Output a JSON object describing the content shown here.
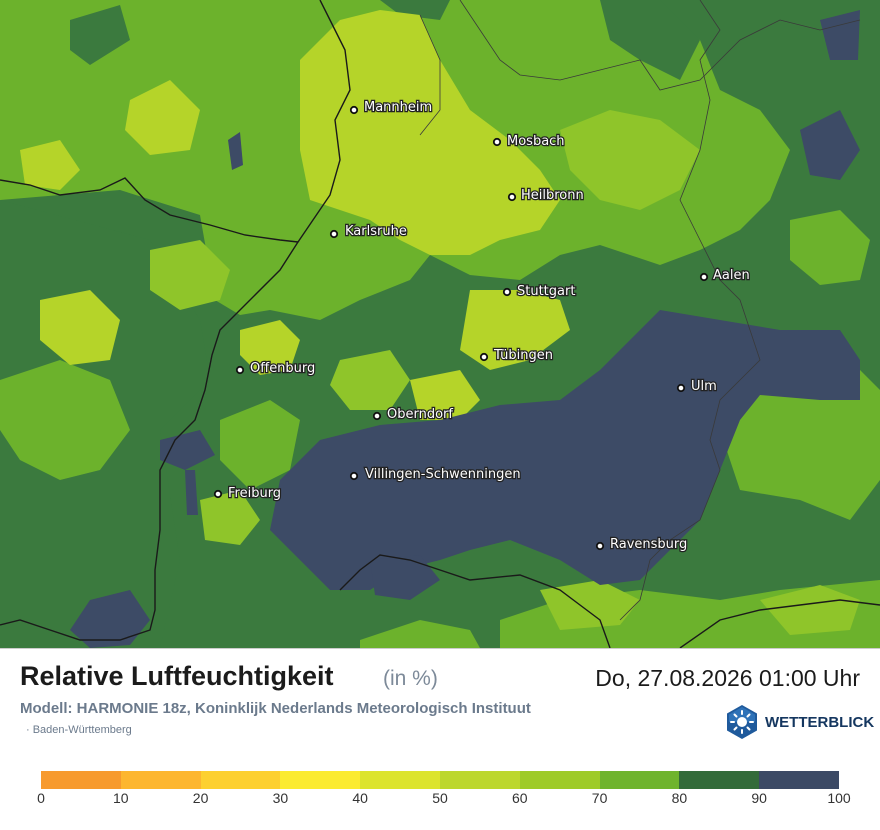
{
  "map": {
    "region": "Baden-Württemberg",
    "cities": [
      {
        "name": "Mannheim"
      },
      {
        "name": "Mosbach"
      },
      {
        "name": "Heilbronn"
      },
      {
        "name": "Karlsruhe"
      },
      {
        "name": "Aalen"
      },
      {
        "name": "Stuttgart"
      },
      {
        "name": "Tübingen"
      },
      {
        "name": "Offenburg"
      },
      {
        "name": "Ulm"
      },
      {
        "name": "Oberndorf"
      },
      {
        "name": "Villingen-Schwenningen"
      },
      {
        "name": "Freiburg"
      },
      {
        "name": "Ravensburg"
      }
    ]
  },
  "header": {
    "title": "Relative Luftfeuchtigkeit",
    "unit": "(in %)",
    "datetime": "Do, 27.08.2026 01:00 Uhr",
    "model": "Modell: HARMONIE 18z, Koninklijk Nederlands Meteorologisch Instituut",
    "region": "· Baden-Württemberg"
  },
  "brand": {
    "name": "WETTERBLICK",
    "icon": "sun-logo-icon"
  },
  "legend": {
    "ticks": [
      "0",
      "10",
      "20",
      "30",
      "40",
      "50",
      "60",
      "70",
      "80",
      "90",
      "100"
    ],
    "colors": [
      "#f79a2e",
      "#fdb62f",
      "#fdd02f",
      "#fbeb30",
      "#dce42e",
      "#bcd72e",
      "#9ecb28",
      "#6fb42e",
      "#336b3a",
      "#3c4a65"
    ]
  },
  "palette": {
    "h50_60": "#b5d429",
    "h60_70": "#8fc52a",
    "h70_80": "#6cb22c",
    "h80_90": "#3b7a3e",
    "h90_100": "#3d4b66",
    "border": "#1a1a1a",
    "admin": "#3a3a3a"
  }
}
